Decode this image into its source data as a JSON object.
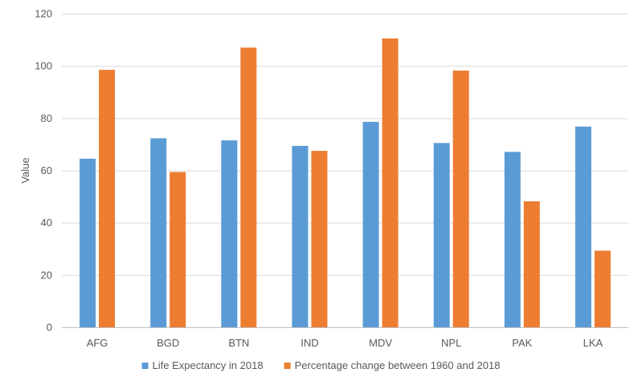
{
  "chart_data": {
    "type": "bar",
    "title": "",
    "xlabel": "",
    "ylabel": "Value",
    "ylim": [
      0,
      120
    ],
    "yticks": [
      0,
      20,
      40,
      60,
      80,
      100,
      120
    ],
    "grid": true,
    "legend_position": "bottom",
    "categories": [
      "AFG",
      "BGD",
      "BTN",
      "IND",
      "MDV",
      "NPL",
      "PAK",
      "LKA"
    ],
    "series": [
      {
        "name": "Life Expectancy in 2018",
        "color": "#5B9BD5",
        "values": [
          64.5,
          72.3,
          71.5,
          69.4,
          78.6,
          70.5,
          67.1,
          76.8
        ]
      },
      {
        "name": "Percentage change between 1960 and 2018",
        "color": "#ED7D31",
        "values": [
          98.5,
          59.4,
          107.0,
          67.5,
          110.5,
          98.2,
          48.2,
          29.3
        ]
      }
    ]
  }
}
